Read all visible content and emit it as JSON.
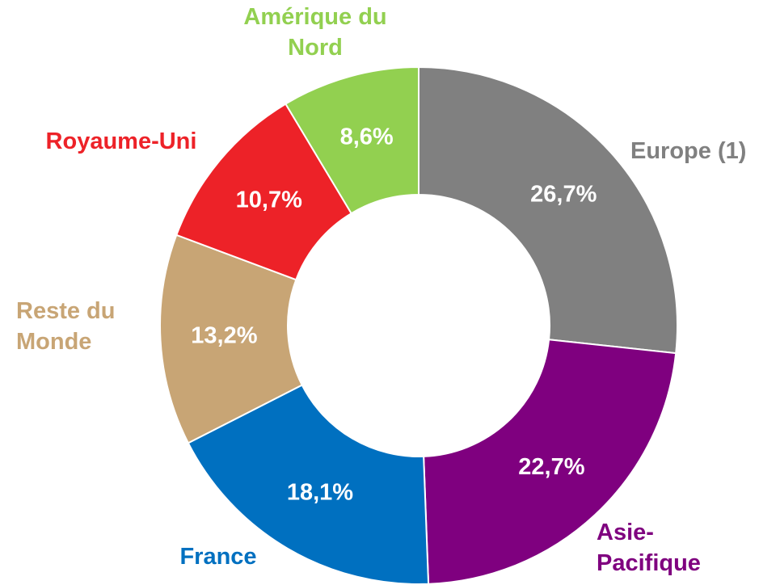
{
  "chart_data": {
    "type": "donut",
    "categories": [
      "Europe (1)",
      "Asie-Pacifique",
      "France",
      "Reste du Monde",
      "Royaume-Uni",
      "Amérique du Nord"
    ],
    "values": [
      26.7,
      22.7,
      18.1,
      13.2,
      10.7,
      8.6
    ],
    "value_labels": [
      "26,7%",
      "22,7%",
      "18,1%",
      "13,2%",
      "10,7%",
      "8,6%"
    ],
    "colors": [
      "#808080",
      "#7f007f",
      "#0070c0",
      "#c8a575",
      "#ed2228",
      "#92d050"
    ],
    "label_colors": [
      "#808080",
      "#7f007f",
      "#0070c0",
      "#c8a575",
      "#ed2228",
      "#92d050"
    ]
  }
}
